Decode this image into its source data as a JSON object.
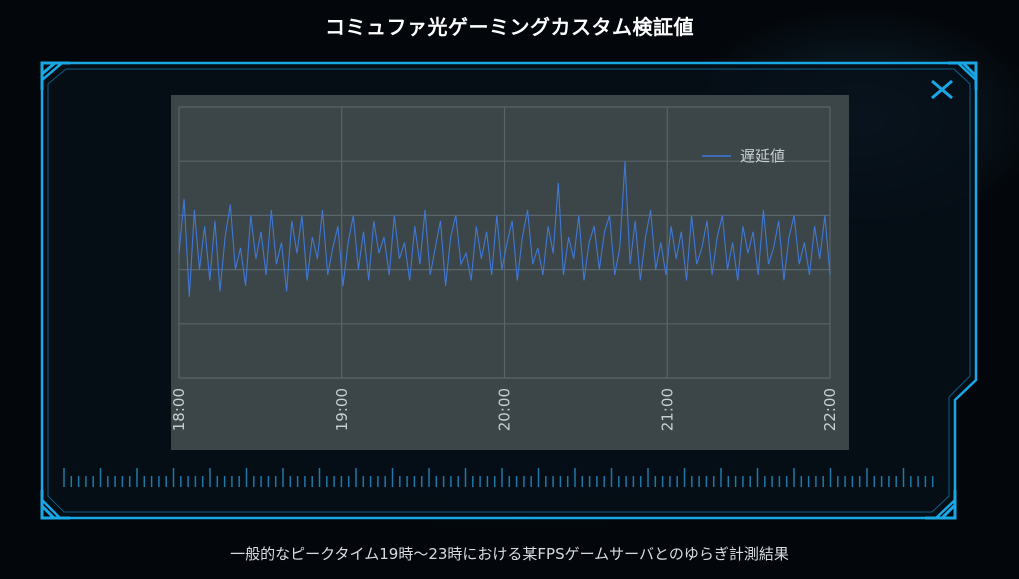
{
  "page": {
    "title": "コミュファ光ゲーミングカスタム検証値",
    "caption": "一般的なピークタイム19時〜23時における某FPSゲームサーバとのゆらぎ計測結果"
  },
  "icons": {
    "close": "close-icon"
  },
  "colors": {
    "frame_accent": "#1aa7e6",
    "chart_background": "#3c4649",
    "series_line": "#3f78d6",
    "grid": "#59656a"
  },
  "chart_data": {
    "type": "line",
    "title": "",
    "xlabel": "",
    "ylabel": "",
    "x_ticks": [
      "18:00",
      "19:00",
      "20:00",
      "21:00",
      "22:00"
    ],
    "xlim": [
      0,
      4
    ],
    "ylim": [
      0,
      5
    ],
    "grid": true,
    "legend_position": "top-right",
    "series": [
      {
        "name": "遅延値",
        "color": "#3f78d6",
        "values": [
          2.3,
          3.3,
          1.5,
          3.1,
          2.0,
          2.8,
          1.8,
          2.9,
          1.6,
          2.6,
          3.2,
          2.0,
          2.4,
          1.7,
          3.0,
          2.2,
          2.7,
          1.9,
          3.1,
          2.1,
          2.5,
          1.6,
          2.9,
          2.3,
          3.0,
          1.8,
          2.6,
          2.2,
          3.1,
          1.9,
          2.4,
          2.8,
          1.7,
          2.5,
          3.0,
          2.0,
          2.7,
          1.8,
          2.9,
          2.3,
          2.6,
          1.9,
          3.0,
          2.2,
          2.5,
          1.8,
          2.8,
          2.1,
          3.1,
          1.9,
          2.4,
          2.9,
          1.7,
          2.6,
          3.0,
          2.1,
          2.3,
          1.8,
          2.8,
          2.2,
          2.7,
          1.9,
          3.0,
          2.0,
          2.5,
          2.9,
          1.8,
          2.6,
          3.1,
          2.1,
          2.4,
          1.9,
          2.8,
          2.3,
          3.6,
          1.9,
          2.6,
          2.2,
          3.0,
          1.8,
          2.5,
          2.8,
          2.0,
          2.7,
          3.0,
          1.9,
          2.4,
          4.0,
          2.1,
          2.9,
          1.8,
          2.6,
          3.1,
          2.0,
          2.5,
          1.9,
          2.8,
          2.2,
          2.7,
          1.8,
          3.0,
          2.1,
          2.4,
          2.9,
          1.9,
          2.6,
          3.0,
          2.0,
          2.5,
          1.8,
          2.8,
          2.3,
          2.7,
          1.9,
          3.1,
          2.1,
          2.4,
          2.9,
          1.8,
          2.6,
          3.0,
          2.1,
          2.5,
          1.9,
          2.8,
          2.2,
          3.0,
          1.9
        ]
      }
    ]
  }
}
